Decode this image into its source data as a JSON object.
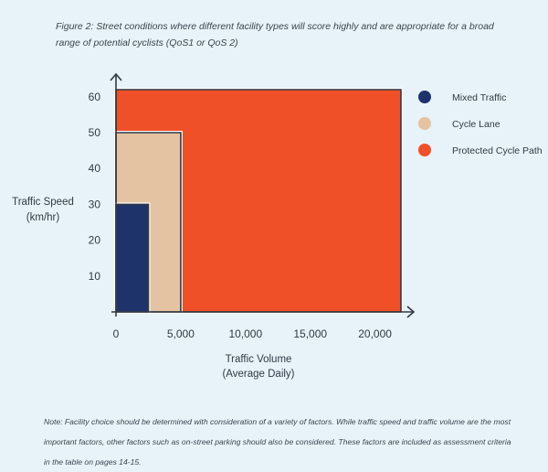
{
  "caption": "Figure 2: Street conditions where different facility types will score highly and are appropriate for a broad range of potential cyclists (QoS1 or QoS 2)",
  "note": "Note: Facility choice should be determined with consideration of a variety of factors. While traffic speed and traffic volume are the most important factors, other factors such as on-street parking should also be considered. These factors are included as assessment criteria in the table on pages 14-15.",
  "chart_data": {
    "type": "area",
    "title": "",
    "xlabel": [
      "Traffic Volume",
      "(Average Daily)"
    ],
    "ylabel": [
      "Traffic Speed",
      "(km/hr)"
    ],
    "xlim": [
      0,
      22000
    ],
    "ylim": [
      0,
      62
    ],
    "x_ticks": [
      0,
      5000,
      10000,
      15000,
      20000
    ],
    "x_tick_labels": [
      "0",
      "5,000",
      "10,000",
      "15,000",
      "20,000"
    ],
    "y_ticks": [
      10,
      20,
      30,
      40,
      50,
      60
    ],
    "y_tick_labels": [
      "10",
      "20",
      "30",
      "40",
      "50",
      "60"
    ],
    "grid": false,
    "legend_position": "top-right",
    "series": [
      {
        "name": "Protected Cycle Path",
        "color": "#f05027",
        "regions": [
          {
            "x": [
              0,
              22000
            ],
            "y": [
              50,
              62
            ]
          },
          {
            "x": [
              5000,
              22000
            ],
            "y": [
              0,
              50
            ]
          }
        ]
      },
      {
        "name": "Cycle Lane",
        "color": "#e3c3a2",
        "regions": [
          {
            "x": [
              0,
              5000
            ],
            "y": [
              30,
              50
            ]
          },
          {
            "x": [
              2500,
              5000
            ],
            "y": [
              0,
              30
            ]
          }
        ]
      },
      {
        "name": "Mixed Traffic",
        "color": "#1f336b",
        "regions": [
          {
            "x": [
              0,
              2500
            ],
            "y": [
              0,
              30
            ]
          }
        ]
      }
    ],
    "legend_order": [
      "Mixed Traffic",
      "Cycle Lane",
      "Protected Cycle Path"
    ]
  }
}
